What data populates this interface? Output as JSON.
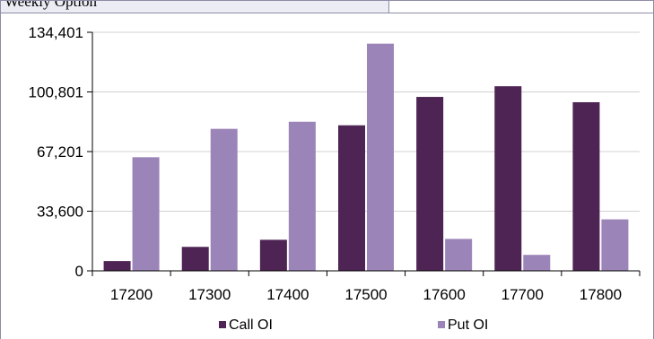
{
  "header": {
    "text": "Weekly Option"
  },
  "chart_data": {
    "type": "bar",
    "categories": [
      "17200",
      "17300",
      "17400",
      "17500",
      "17600",
      "17700",
      "17800"
    ],
    "series": [
      {
        "name": "Call OI",
        "color": "#4e2454",
        "values": [
          5500,
          13500,
          17500,
          82000,
          98000,
          104000,
          95000
        ]
      },
      {
        "name": "Put OI",
        "color": "#9b84b8",
        "values": [
          64000,
          80000,
          84000,
          128000,
          18000,
          9000,
          29000
        ]
      }
    ],
    "yticks": [
      0,
      33600,
      67201,
      100801,
      134401
    ],
    "ytick_labels": [
      "0",
      "33,600",
      "67,201",
      "100,801",
      "134,401"
    ],
    "ylim": [
      0,
      134401
    ],
    "grid": true,
    "legend_position": "bottom"
  }
}
